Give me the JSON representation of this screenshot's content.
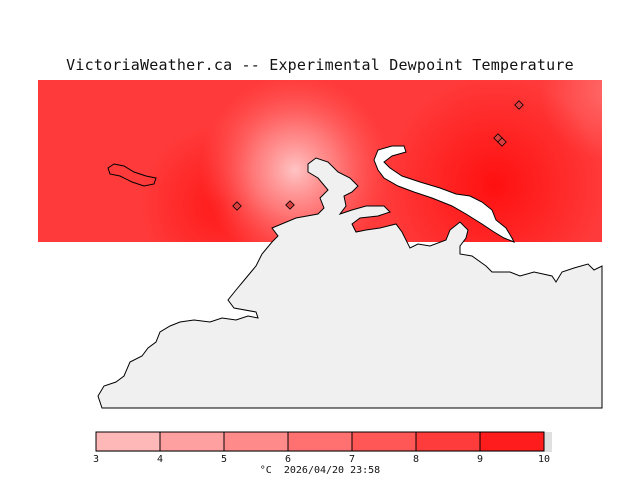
{
  "title": "VictoriaWeather.ca -- Experimental Dewpoint Temperature",
  "colorbar": {
    "ticks": [
      "3",
      "4",
      "5",
      "6",
      "7",
      "8",
      "9",
      "10"
    ],
    "colors": [
      "#ffb8b8",
      "#ffa0a0",
      "#ff8a8a",
      "#ff7070",
      "#ff5656",
      "#ff3c3c",
      "#ff1c1c"
    ]
  },
  "footer": {
    "unit": "°C",
    "timestamp": "2026/04/20 23:58"
  },
  "colors": {
    "field_base": "#ff3a3a",
    "land": "#f0f0f0",
    "water": "#ffffff"
  }
}
